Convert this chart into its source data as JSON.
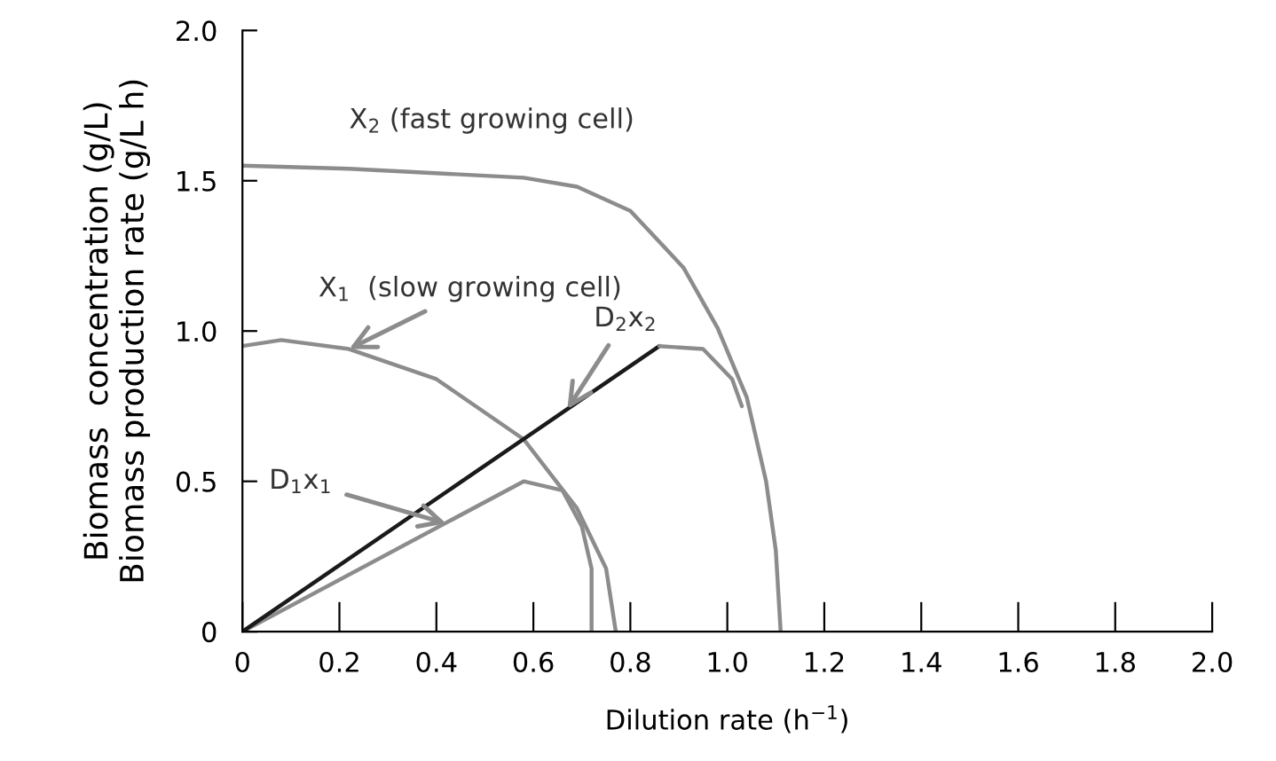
{
  "chart_data": {
    "type": "line",
    "xlabel": "Dilution rate (h$^{−1}$)",
    "ylabel": "Biomass  concentration (g/L)\nBiomass production rate (g/L h)",
    "xlim": [
      0,
      2.0
    ],
    "ylim": [
      0,
      2.0
    ],
    "xticks": [
      0,
      0.2,
      0.4,
      0.6,
      0.8,
      {
        "value": 1.0,
        "label": "1.0"
      },
      1.2,
      1.4,
      1.6,
      1.8,
      {
        "value": 2.0,
        "label": "2.0"
      }
    ],
    "yticks": [
      0,
      0.5,
      {
        "value": 1.0,
        "label": "1.0"
      },
      1.5,
      {
        "value": 2.0,
        "label": "2.0"
      }
    ],
    "grid": false,
    "legend": false,
    "marker": "none",
    "line_style": "solid",
    "series": [
      {
        "color": "#8c8c8c",
        "x": [
          0,
          0.22,
          0.58,
          0.69,
          0.8,
          0.91,
          0.98,
          1.04,
          1.08,
          1.1,
          1.11
        ],
        "values": [
          1.55,
          1.54,
          1.51,
          1.48,
          1.4,
          1.21,
          1.01,
          0.78,
          0.5,
          0.27,
          0
        ]
      },
      {
        "color": "#8c8c8c",
        "x": [
          0,
          0.08,
          0.22,
          0.4,
          0.58,
          0.69,
          0.75,
          0.77
        ],
        "values": [
          0.95,
          0.97,
          0.94,
          0.84,
          0.64,
          0.41,
          0.21,
          0
        ]
      },
      {
        "color": "#8c8c8c",
        "x": [
          0,
          0.58,
          0.66,
          0.7,
          0.72,
          0.72
        ],
        "values": [
          0,
          0.5,
          0.47,
          0.35,
          0.21,
          0
        ]
      },
      {
        "color": "#1a1a1a",
        "x": [
          0,
          0.86
        ],
        "values": [
          0,
          0.95
        ]
      },
      {
        "color": "#8c8c8c",
        "x": [
          0.86,
          0.95,
          1.01,
          1.03
        ],
        "values": [
          0.95,
          0.94,
          0.84,
          0.75
        ]
      }
    ],
    "annotations": [
      {
        "text": "X$_{2}$ (fast growing cell)",
        "x": 0.22,
        "y": 1.54
      },
      {
        "text": "X$_{1}$  (slow growing cell)",
        "x": 0.22,
        "y": 0.94
      },
      {
        "text": "D$_{2}$x$_{2}$",
        "x": 0.67,
        "y": 0.74
      },
      {
        "text": "D$_{1}$x$_{1}$",
        "x": 0.42,
        "y": 0.36
      }
    ]
  }
}
